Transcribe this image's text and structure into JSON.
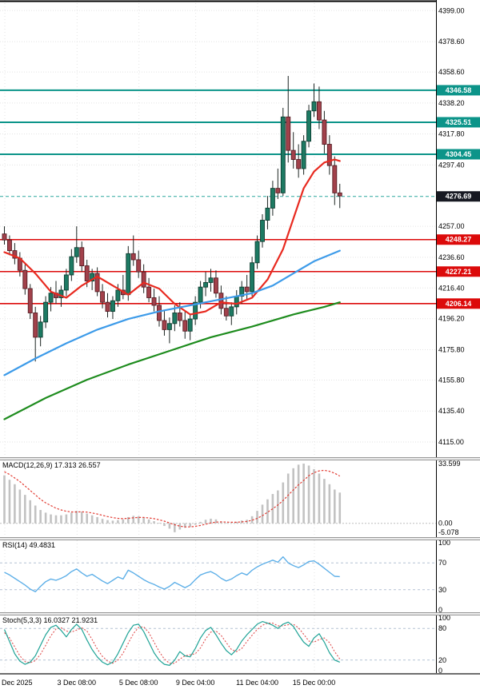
{
  "colors": {
    "up_candle": "#1d7a63",
    "up_border": "#0d3d30",
    "down_candle": "#a2414b",
    "down_border": "#571d24",
    "wick": "#1c2522",
    "resistance": "#0c9489",
    "support": "#dc0a0a",
    "current_badge": "#171922",
    "current_line": "#2aa79e",
    "macd_hist": "#c2c2c2",
    "macd_signal": "#e23b32",
    "rsi_line": "#5fb0e8",
    "stoch_k": "#1fa396",
    "stoch_d": "#e05050",
    "grid": "#e3e3e3",
    "panel_level": "#b4c1d4"
  },
  "chart_data": [
    {
      "type": "candlestick",
      "name": "price",
      "ylim": [
        4105,
        4406
      ],
      "y_ticks": [
        "4399.00",
        "4378.60",
        "4358.60",
        "4338.20",
        "4317.80",
        "4297.40",
        "4257.00",
        "4236.60",
        "4216.40",
        "4196.20",
        "4175.80",
        "4155.80",
        "4135.40",
        "4115.00"
      ],
      "x_labels": [
        {
          "text": "Dec 2025",
          "idx": 0
        },
        {
          "text": "3 Dec 08:00",
          "idx": 14
        },
        {
          "text": "5 Dec 08:00",
          "idx": 26
        },
        {
          "text": "9 Dec 04:00",
          "idx": 37
        },
        {
          "text": "11 Dec 04:00",
          "idx": 49
        },
        {
          "text": "15 Dec 00:00",
          "idx": 60
        }
      ],
      "resistance": [
        {
          "price": 4346.58,
          "label": "4346.58"
        },
        {
          "price": 4325.51,
          "label": "4325.51"
        },
        {
          "price": 4304.45,
          "label": "4304.45"
        }
      ],
      "support": [
        {
          "price": 4248.27,
          "label": "4248.27"
        },
        {
          "price": 4227.21,
          "label": "4227.21"
        },
        {
          "price": 4206.14,
          "label": "4206.14"
        }
      ],
      "current_price": {
        "price": 4276.69,
        "label": "4276.69"
      },
      "candles": [
        [
          4252,
          4257,
          4245,
          4248
        ],
        [
          4248,
          4251,
          4238,
          4241
        ],
        [
          4241,
          4246,
          4232,
          4236
        ],
        [
          4236,
          4240,
          4224,
          4228
        ],
        [
          4228,
          4232,
          4212,
          4216
        ],
        [
          4216,
          4219,
          4196,
          4200
        ],
        [
          4200,
          4204,
          4168,
          4184
        ],
        [
          4184,
          4198,
          4178,
          4194
        ],
        [
          4194,
          4211,
          4190,
          4207
        ],
        [
          4207,
          4217,
          4201,
          4213
        ],
        [
          4213,
          4221,
          4206,
          4210
        ],
        [
          4210,
          4218,
          4204,
          4215
        ],
        [
          4215,
          4229,
          4211,
          4225
        ],
        [
          4225,
          4242,
          4221,
          4237
        ],
        [
          4237,
          4257,
          4233,
          4243
        ],
        [
          4243,
          4247,
          4227,
          4231
        ],
        [
          4231,
          4235,
          4217,
          4221
        ],
        [
          4221,
          4229,
          4215,
          4226
        ],
        [
          4226,
          4230,
          4211,
          4214
        ],
        [
          4214,
          4219,
          4203,
          4207
        ],
        [
          4207,
          4213,
          4197,
          4201
        ],
        [
          4201,
          4211,
          4196,
          4208
        ],
        [
          4208,
          4219,
          4204,
          4215
        ],
        [
          4215,
          4225,
          4209,
          4212
        ],
        [
          4212,
          4244,
          4208,
          4239
        ],
        [
          4239,
          4251,
          4231,
          4235
        ],
        [
          4235,
          4241,
          4223,
          4227
        ],
        [
          4227,
          4232,
          4213,
          4217
        ],
        [
          4217,
          4223,
          4207,
          4210
        ],
        [
          4210,
          4216,
          4201,
          4205
        ],
        [
          4205,
          4211,
          4191,
          4195
        ],
        [
          4195,
          4202,
          4185,
          4189
        ],
        [
          4189,
          4197,
          4180,
          4193
        ],
        [
          4193,
          4205,
          4188,
          4200
        ],
        [
          4200,
          4207,
          4191,
          4195
        ],
        [
          4195,
          4201,
          4183,
          4188
        ],
        [
          4188,
          4199,
          4182,
          4196
        ],
        [
          4196,
          4211,
          4192,
          4207
        ],
        [
          4207,
          4221,
          4203,
          4217
        ],
        [
          4217,
          4227,
          4211,
          4220
        ],
        [
          4220,
          4229,
          4214,
          4223
        ],
        [
          4223,
          4228,
          4210,
          4213
        ],
        [
          4213,
          4218,
          4199,
          4203
        ],
        [
          4203,
          4211,
          4195,
          4198
        ],
        [
          4198,
          4207,
          4192,
          4204
        ],
        [
          4204,
          4215,
          4199,
          4211
        ],
        [
          4211,
          4221,
          4206,
          4217
        ],
        [
          4217,
          4225,
          4209,
          4214
        ],
        [
          4214,
          4237,
          4211,
          4233
        ],
        [
          4233,
          4251,
          4229,
          4247
        ],
        [
          4247,
          4265,
          4243,
          4261
        ],
        [
          4261,
          4277,
          4255,
          4269
        ],
        [
          4269,
          4287,
          4264,
          4282
        ],
        [
          4282,
          4295,
          4275,
          4279
        ],
        [
          4279,
          4335,
          4277,
          4329
        ],
        [
          4329,
          4356,
          4299,
          4307
        ],
        [
          4307,
          4319,
          4295,
          4301
        ],
        [
          4301,
          4311,
          4289,
          4295
        ],
        [
          4295,
          4317,
          4291,
          4313
        ],
        [
          4313,
          4337,
          4309,
          4333
        ],
        [
          4333,
          4351,
          4329,
          4339
        ],
        [
          4339,
          4349,
          4321,
          4327
        ],
        [
          4327,
          4333,
          4305,
          4311
        ],
        [
          4311,
          4317,
          4291,
          4297
        ],
        [
          4297,
          4303,
          4271,
          4279
        ],
        [
          4279,
          4285,
          4269,
          4277
        ]
      ],
      "moving_averages": [
        {
          "name": "ma-fast-red",
          "color": "#e8291f",
          "points": [
            [
              0,
              4240
            ],
            [
              3,
              4236
            ],
            [
              6,
              4226
            ],
            [
              9,
              4214
            ],
            [
              12,
              4210
            ],
            [
              15,
              4218
            ],
            [
              18,
              4224
            ],
            [
              21,
              4218
            ],
            [
              24,
              4212
            ],
            [
              27,
              4220
            ],
            [
              30,
              4216
            ],
            [
              33,
              4206
            ],
            [
              36,
              4199
            ],
            [
              39,
              4201
            ],
            [
              42,
              4207
            ],
            [
              45,
              4206
            ],
            [
              48,
              4210
            ],
            [
              51,
              4222
            ],
            [
              54,
              4242
            ],
            [
              56,
              4262
            ],
            [
              58,
              4282
            ],
            [
              60,
              4293
            ],
            [
              62,
              4299
            ],
            [
              64,
              4301
            ],
            [
              65,
              4300
            ]
          ]
        },
        {
          "name": "ma-mid-blue",
          "color": "#3d9be9",
          "points": [
            [
              0,
              4159
            ],
            [
              6,
              4170
            ],
            [
              12,
              4180
            ],
            [
              18,
              4189
            ],
            [
              24,
              4196
            ],
            [
              30,
              4201
            ],
            [
              36,
              4205
            ],
            [
              42,
              4209
            ],
            [
              48,
              4213
            ],
            [
              52,
              4218
            ],
            [
              56,
              4226
            ],
            [
              60,
              4234
            ],
            [
              65,
              4241
            ]
          ]
        },
        {
          "name": "ma-slow-green",
          "color": "#1e8c1e",
          "points": [
            [
              0,
              4130
            ],
            [
              8,
              4144
            ],
            [
              16,
              4156
            ],
            [
              24,
              4166
            ],
            [
              32,
              4175
            ],
            [
              40,
              4184
            ],
            [
              48,
              4191
            ],
            [
              56,
              4199
            ],
            [
              62,
              4204
            ],
            [
              65,
              4207
            ]
          ]
        }
      ]
    },
    {
      "type": "bar",
      "name": "MACD",
      "title": "MACD(12,26,9) 17.313 26.557",
      "ylim": [
        -5.078,
        33.599
      ],
      "ticks": [
        33.599,
        0,
        -5.078
      ],
      "tick_labels": [
        "33.599",
        "0.00",
        "-5.078"
      ],
      "histogram": [
        27,
        24.5,
        22,
        19,
        16,
        13,
        10,
        7.5,
        6,
        5,
        4.5,
        4.5,
        5,
        6,
        7,
        6.5,
        5.5,
        4.5,
        3.5,
        2.5,
        1.8,
        1.5,
        1.8,
        2.2,
        3.5,
        4.2,
        4,
        3.2,
        2.2,
        1.2,
        0.3,
        -1.5,
        -3,
        -5,
        -3.5,
        -2.5,
        -2,
        -0.8,
        0.8,
        2,
        2.6,
        2.2,
        1,
        0.2,
        0.2,
        0.8,
        1.6,
        2,
        4,
        7,
        10.5,
        13.5,
        16.5,
        18.5,
        23,
        28,
        31,
        33,
        33.6,
        32.5,
        30.5,
        28,
        25,
        22,
        19,
        17.3
      ],
      "signal": [
        29,
        27.5,
        25.5,
        23.5,
        21,
        18.5,
        16,
        13.5,
        11.5,
        10,
        8.5,
        7.5,
        6.8,
        6.4,
        6.4,
        6.5,
        6.3,
        5.8,
        5.2,
        4.5,
        3.8,
        3.2,
        2.8,
        2.6,
        2.8,
        3.1,
        3.3,
        3.3,
        3,
        2.6,
        2,
        1.2,
        0.2,
        -0.8,
        -1.6,
        -2,
        -2,
        -1.7,
        -1.2,
        -0.5,
        0.2,
        0.7,
        0.8,
        0.7,
        0.6,
        0.6,
        0.8,
        1.1,
        1.7,
        2.8,
        4.3,
        6.2,
        8.2,
        10.3,
        12.8,
        15.8,
        18.8,
        21.7,
        24.1,
        26.8,
        28.5,
        29.5,
        29.8,
        29.3,
        28.2,
        26.6
      ]
    },
    {
      "type": "line",
      "name": "RSI",
      "title": "RSI(14) 49.4831",
      "ylim": [
        0,
        100
      ],
      "ticks": [
        100,
        70,
        30,
        0
      ],
      "levels": [
        70,
        30
      ],
      "values": [
        56,
        52,
        47,
        42,
        37,
        31,
        27,
        35,
        42,
        46,
        44,
        47,
        51,
        57,
        61,
        55,
        50,
        53,
        48,
        43,
        39,
        44,
        49,
        46,
        59,
        55,
        50,
        45,
        41,
        38,
        34,
        31,
        35,
        41,
        37,
        33,
        37,
        45,
        52,
        55,
        57,
        53,
        47,
        43,
        46,
        51,
        55,
        52,
        59,
        64,
        68,
        71,
        74,
        71,
        79,
        70,
        66,
        63,
        67,
        72,
        73,
        68,
        62,
        56,
        50,
        49.5
      ]
    },
    {
      "type": "line",
      "name": "Stochastic",
      "title": "Stoch(5,3,3) 16.0327 21.9231",
      "ylim": [
        0,
        100
      ],
      "ticks": [
        100,
        80,
        20,
        0
      ],
      "levels": [
        80,
        20
      ],
      "k": [
        78,
        55,
        32,
        18,
        12,
        16,
        28,
        48,
        68,
        82,
        86,
        76,
        64,
        78,
        88,
        78,
        58,
        40,
        26,
        16,
        11,
        16,
        32,
        52,
        72,
        86,
        88,
        74,
        54,
        34,
        20,
        12,
        10,
        20,
        36,
        28,
        26,
        42,
        62,
        76,
        82,
        68,
        52,
        38,
        30,
        40,
        56,
        68,
        78,
        88,
        93,
        90,
        86,
        80,
        88,
        92,
        84,
        68,
        54,
        46,
        62,
        70,
        54,
        34,
        20,
        16
      ],
      "d": [
        72,
        62,
        45,
        28,
        17,
        15,
        19,
        31,
        48,
        66,
        79,
        81,
        75,
        73,
        77,
        81,
        75,
        59,
        41,
        27,
        18,
        14,
        20,
        33,
        52,
        70,
        82,
        83,
        72,
        54,
        36,
        22,
        14,
        14,
        22,
        28,
        30,
        32,
        43,
        60,
        73,
        75,
        67,
        53,
        40,
        36,
        42,
        55,
        67,
        78,
        86,
        90,
        90,
        85,
        85,
        87,
        88,
        81,
        69,
        56,
        54,
        59,
        62,
        53,
        36,
        22
      ]
    }
  ]
}
